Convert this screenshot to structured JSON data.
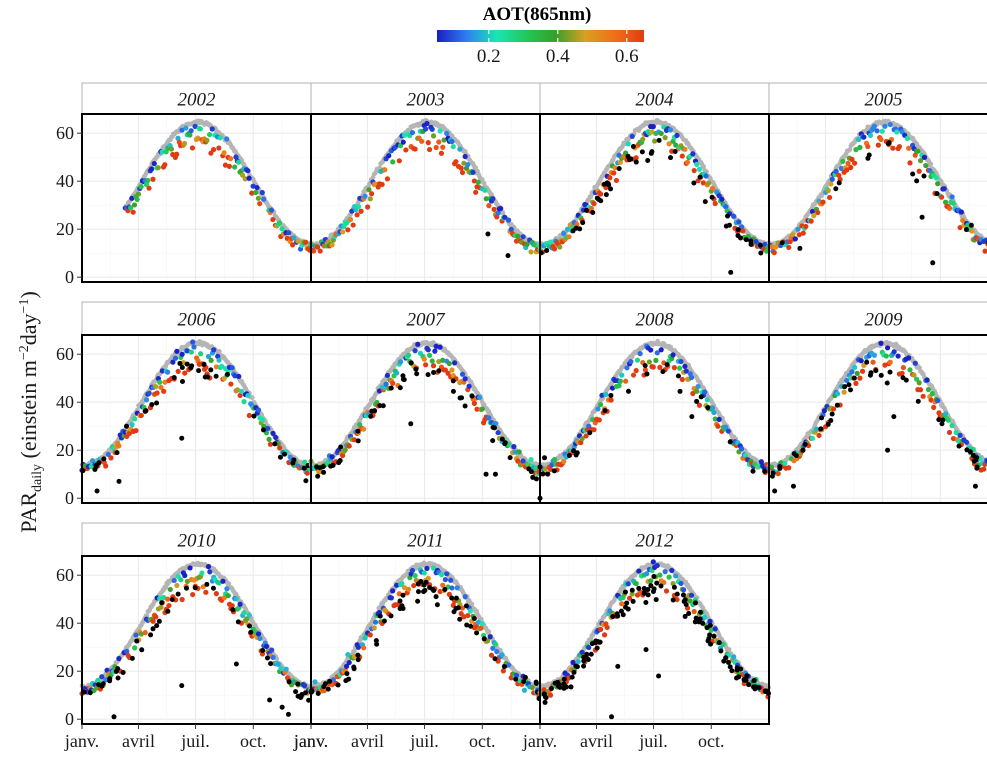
{
  "chart_data": {
    "type": "scatter",
    "ylabel_parts": {
      "main": "PAR",
      "subscript": "daily",
      "unit_open": " (einstein m",
      "exp1": "−2",
      "unit_mid": "day",
      "exp2": "−1",
      "unit_close": ")"
    },
    "legend": {
      "title": "AOT(865nm)",
      "colors": [
        "#1a1fc4",
        "#2f7ef0",
        "#18e6b4",
        "#22c85a",
        "#35a02a",
        "#d8a020",
        "#f0701a",
        "#e23b12"
      ],
      "range": [
        0.05,
        0.65
      ],
      "ticks": [
        "0.2",
        "0.4",
        "0.6"
      ],
      "tick_values": [
        0.2,
        0.4,
        0.6
      ]
    },
    "facets": [
      "2002",
      "2003",
      "2004",
      "2005",
      "2006",
      "2007",
      "2008",
      "2009",
      "2010",
      "2011",
      "2012"
    ],
    "y_ticks": [
      "0",
      "20",
      "40",
      "60"
    ],
    "y_tick_values": [
      0,
      20,
      40,
      60
    ],
    "ylim": [
      -2,
      68
    ],
    "x_ticks": [
      "janv.",
      "avril",
      "juil.",
      "oct."
    ],
    "x_tick_values": [
      1,
      91,
      182,
      274
    ],
    "xlim": [
      1,
      366
    ],
    "panel_data": [
      {
        "year": "2002",
        "start": 70,
        "end": 366,
        "black_count": 0,
        "black_outliers": []
      },
      {
        "year": "2003",
        "start": 1,
        "end": 366,
        "black_count": 0,
        "black_outliers": [
          [
            283,
            18
          ],
          [
            315,
            9
          ]
        ]
      },
      {
        "year": "2004",
        "start": 1,
        "end": 366,
        "black_count": 45,
        "black_outliers": [
          [
            305,
            2
          ]
        ]
      },
      {
        "year": "2005",
        "start": 1,
        "end": 366,
        "black_count": 14,
        "black_outliers": [
          [
            230,
            43
          ],
          [
            245,
            25
          ],
          [
            262,
            6
          ]
        ]
      },
      {
        "year": "2006",
        "start": 1,
        "end": 366,
        "black_count": 35,
        "black_outliers": [
          [
            25,
            3
          ],
          [
            60,
            7
          ],
          [
            72,
            30
          ],
          [
            160,
            25
          ]
        ]
      },
      {
        "year": "2007",
        "start": 1,
        "end": 366,
        "black_count": 45,
        "black_outliers": [
          [
            160,
            31
          ],
          [
            280,
            10
          ],
          [
            295,
            10
          ]
        ]
      },
      {
        "year": "2008",
        "start": 1,
        "end": 366,
        "black_count": 25,
        "black_outliers": [
          [
            1,
            0
          ],
          [
            243,
            34
          ]
        ]
      },
      {
        "year": "2009",
        "start": 1,
        "end": 366,
        "black_count": 40,
        "black_outliers": [
          [
            10,
            3
          ],
          [
            40,
            5
          ],
          [
            190,
            20
          ],
          [
            200,
            34
          ],
          [
            330,
            5
          ]
        ]
      },
      {
        "year": "2010",
        "start": 1,
        "end": 366,
        "black_count": 40,
        "black_outliers": [
          [
            45,
            16
          ],
          [
            52,
            1
          ],
          [
            160,
            14
          ],
          [
            247,
            23
          ],
          [
            300,
            8
          ],
          [
            320,
            5
          ],
          [
            330,
            2
          ]
        ]
      },
      {
        "year": "2011",
        "start": 1,
        "end": 366,
        "black_count": 60,
        "black_outliers": []
      },
      {
        "year": "2012",
        "start": 1,
        "end": 366,
        "black_count": 110,
        "black_outliers": [
          [
            115,
            1
          ],
          [
            125,
            22
          ],
          [
            170,
            29
          ],
          [
            190,
            18
          ]
        ]
      }
    ],
    "clear_sky_color": "#b5b5b5",
    "black_color": "#000000",
    "grid": true,
    "legend_position": "top"
  }
}
